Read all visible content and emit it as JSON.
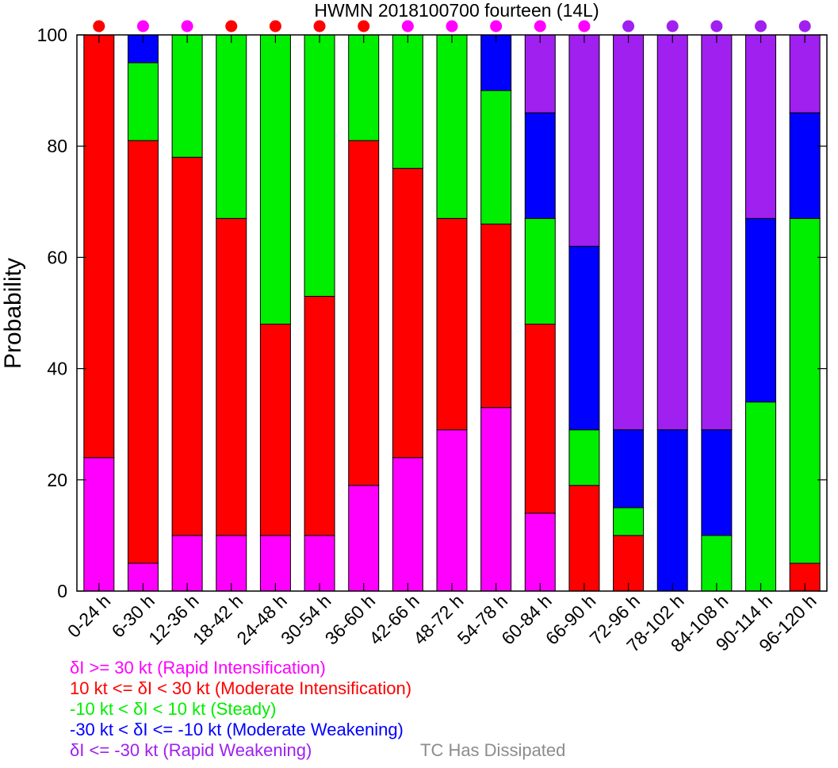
{
  "chart_data": {
    "type": "bar",
    "stacked": true,
    "title": "HWMN 2018100700 fourteen (14L)",
    "xlabel": "",
    "ylabel": "Probability",
    "ylim": [
      0,
      100
    ],
    "yticks": [
      "0",
      "20",
      "40",
      "60",
      "80",
      "100"
    ],
    "categories": [
      "0-24 h",
      "6-30 h",
      "12-36 h",
      "18-42 h",
      "24-48 h",
      "30-54 h",
      "36-60 h",
      "42-66 h",
      "48-72 h",
      "54-78 h",
      "60-84 h",
      "66-90 h",
      "72-96 h",
      "78-102 h",
      "84-108 h",
      "90-114 h",
      "96-120 h"
    ],
    "series": [
      {
        "name": "δI >= 30 kt (Rapid Intensification)",
        "color": "#ff00ff",
        "values": [
          24,
          5,
          10,
          10,
          10,
          10,
          19,
          24,
          29,
          33,
          14,
          0,
          0,
          0,
          0,
          0,
          0
        ]
      },
      {
        "name": "10 kt <= δI < 30 kt (Moderate Intensification)",
        "color": "#ff0000",
        "values": [
          76,
          76,
          68,
          57,
          38,
          43,
          62,
          52,
          38,
          33,
          34,
          19,
          10,
          0,
          0,
          0,
          5
        ]
      },
      {
        "name": "-10 kt < δI < 10 kt (Steady)",
        "color": "#00ee00",
        "values": [
          0,
          14,
          22,
          33,
          52,
          47,
          19,
          24,
          33,
          24,
          19,
          10,
          5,
          0,
          10,
          34,
          62
        ]
      },
      {
        "name": "-30 kt < δI <= -10 kt (Moderate Weakening)",
        "color": "#0000ff",
        "values": [
          0,
          5,
          0,
          0,
          0,
          0,
          0,
          0,
          0,
          10,
          19,
          33,
          14,
          29,
          19,
          33,
          19
        ]
      },
      {
        "name": "δI <= -30 kt (Rapid Weakening)",
        "color": "#a020f0",
        "values": [
          0,
          0,
          0,
          0,
          0,
          0,
          0,
          0,
          0,
          0,
          14,
          38,
          71,
          71,
          71,
          33,
          14
        ]
      }
    ],
    "top_markers": [
      "#ff0000",
      "#ff00ff",
      "#ff00ff",
      "#ff0000",
      "#ff0000",
      "#ff0000",
      "#ff0000",
      "#ff00ff",
      "#ff00ff",
      "#ff00ff",
      "#ff00ff",
      "#ff00ff",
      "#a020f0",
      "#a020f0",
      "#a020f0",
      "#a020f0",
      "#a020f0"
    ],
    "extra_legend": {
      "name": "TC Has Dissipated",
      "color": "#8c8c8c"
    },
    "grid": false,
    "legend_position": "bottom-left"
  }
}
